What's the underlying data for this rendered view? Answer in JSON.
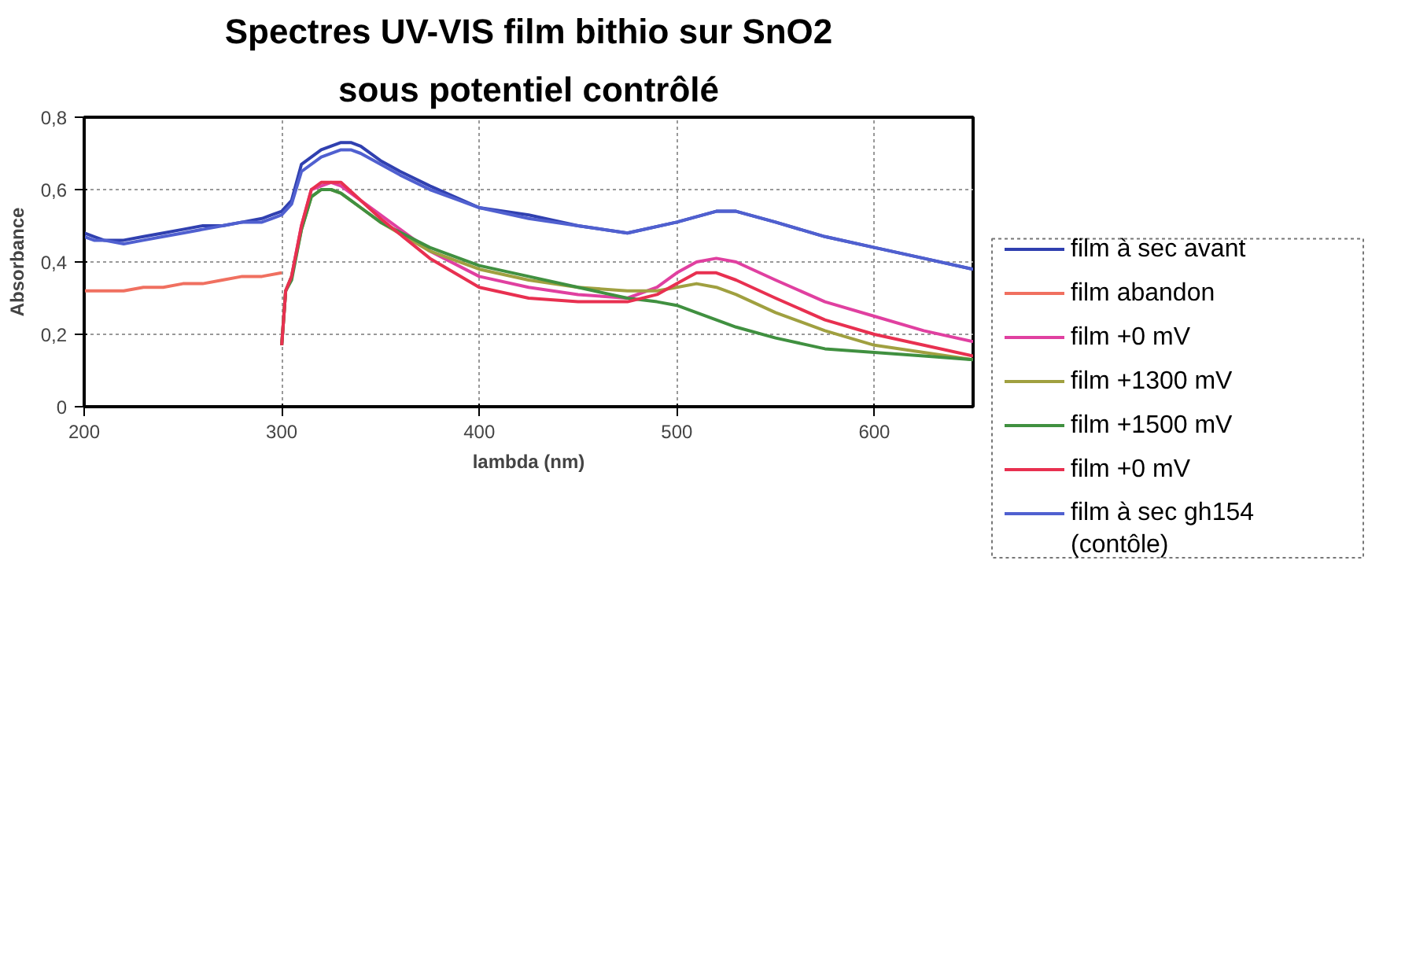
{
  "chart_data": {
    "type": "line",
    "title": "Spectres UV-VIS film bithio sur SnO2",
    "subtitle": "sous potentiel contrôlé",
    "xlabel": "lambda (nm)",
    "ylabel": "Absorbance",
    "xlim": [
      200,
      650
    ],
    "xticks": [
      200,
      300,
      400,
      500,
      600
    ],
    "ylim": [
      0,
      0.8
    ],
    "yticks": [
      {
        "value": 0,
        "label": "0"
      },
      {
        "value": 0.2,
        "label": "0,2"
      },
      {
        "value": 0.4,
        "label": "0,4"
      },
      {
        "value": 0.6,
        "label": "0,6"
      },
      {
        "value": 0.8,
        "label": "0,8"
      }
    ],
    "grid": true,
    "legend": "right",
    "marker": "none",
    "line_style": "solid",
    "series": [
      {
        "name": "film à sec avant",
        "color": "#3040b0",
        "x": [
          200,
          205,
          210,
          220,
          230,
          240,
          250,
          260,
          270,
          280,
          290,
          295,
          300,
          305,
          310,
          320,
          330,
          335,
          340,
          350,
          360,
          375,
          400,
          425,
          450,
          475,
          500,
          520,
          530,
          550,
          575,
          600,
          625,
          650
        ],
        "values": [
          0.48,
          0.47,
          0.46,
          0.46,
          0.47,
          0.48,
          0.49,
          0.5,
          0.5,
          0.51,
          0.52,
          0.53,
          0.54,
          0.57,
          0.67,
          0.71,
          0.73,
          0.73,
          0.72,
          0.68,
          0.65,
          0.61,
          0.55,
          0.53,
          0.5,
          0.48,
          0.51,
          0.54,
          0.54,
          0.51,
          0.47,
          0.44,
          0.41,
          0.38
        ]
      },
      {
        "name": "film abandon",
        "color": "#f07060",
        "x": [
          200,
          210,
          220,
          230,
          240,
          250,
          260,
          270,
          280,
          290,
          300
        ],
        "values": [
          0.32,
          0.32,
          0.32,
          0.33,
          0.33,
          0.34,
          0.34,
          0.35,
          0.36,
          0.36,
          0.37
        ]
      },
      {
        "name": "film +0 mV",
        "color": "#e040a0",
        "x": [
          300,
          302,
          305,
          310,
          315,
          320,
          325,
          330,
          340,
          350,
          375,
          400,
          425,
          450,
          475,
          490,
          500,
          510,
          520,
          530,
          550,
          575,
          600,
          625,
          650
        ],
        "values": [
          0.17,
          0.32,
          0.36,
          0.5,
          0.6,
          0.61,
          0.62,
          0.61,
          0.57,
          0.53,
          0.43,
          0.36,
          0.33,
          0.31,
          0.3,
          0.33,
          0.37,
          0.4,
          0.41,
          0.4,
          0.35,
          0.29,
          0.25,
          0.21,
          0.18
        ]
      },
      {
        "name": "film +1300 mV",
        "color": "#a0a040",
        "x": [
          300,
          302,
          305,
          310,
          315,
          320,
          325,
          330,
          340,
          350,
          375,
          400,
          425,
          450,
          475,
          490,
          500,
          510,
          520,
          530,
          550,
          575,
          600,
          625,
          650
        ],
        "values": [
          0.17,
          0.32,
          0.36,
          0.49,
          0.58,
          0.6,
          0.6,
          0.59,
          0.55,
          0.51,
          0.43,
          0.38,
          0.35,
          0.33,
          0.32,
          0.32,
          0.33,
          0.34,
          0.33,
          0.31,
          0.26,
          0.21,
          0.17,
          0.15,
          0.13
        ]
      },
      {
        "name": "film +1500 mV",
        "color": "#409040",
        "x": [
          300,
          302,
          305,
          310,
          315,
          320,
          325,
          330,
          340,
          350,
          375,
          400,
          425,
          450,
          475,
          490,
          500,
          510,
          520,
          530,
          550,
          575,
          600,
          625,
          650
        ],
        "values": [
          0.17,
          0.32,
          0.35,
          0.49,
          0.58,
          0.6,
          0.6,
          0.59,
          0.55,
          0.51,
          0.44,
          0.39,
          0.36,
          0.33,
          0.3,
          0.29,
          0.28,
          0.26,
          0.24,
          0.22,
          0.19,
          0.16,
          0.15,
          0.14,
          0.13
        ]
      },
      {
        "name": "film +0 mV",
        "color": "#e83050",
        "x": [
          300,
          302,
          305,
          310,
          315,
          320,
          325,
          330,
          340,
          350,
          375,
          400,
          425,
          450,
          475,
          490,
          500,
          510,
          520,
          530,
          550,
          575,
          600,
          625,
          650
        ],
        "values": [
          0.17,
          0.32,
          0.36,
          0.5,
          0.6,
          0.62,
          0.62,
          0.62,
          0.57,
          0.52,
          0.41,
          0.33,
          0.3,
          0.29,
          0.29,
          0.31,
          0.34,
          0.37,
          0.37,
          0.35,
          0.3,
          0.24,
          0.2,
          0.17,
          0.14
        ]
      },
      {
        "name": "film à sec gh154 (contôle)",
        "color": "#5060d0",
        "x": [
          200,
          205,
          210,
          220,
          230,
          240,
          250,
          260,
          270,
          280,
          290,
          295,
          300,
          305,
          310,
          320,
          330,
          335,
          340,
          350,
          360,
          375,
          400,
          425,
          450,
          475,
          500,
          520,
          530,
          550,
          575,
          600,
          625,
          650
        ],
        "values": [
          0.47,
          0.46,
          0.46,
          0.45,
          0.46,
          0.47,
          0.48,
          0.49,
          0.5,
          0.51,
          0.51,
          0.52,
          0.53,
          0.56,
          0.65,
          0.69,
          0.71,
          0.71,
          0.7,
          0.67,
          0.64,
          0.6,
          0.55,
          0.52,
          0.5,
          0.48,
          0.51,
          0.54,
          0.54,
          0.51,
          0.47,
          0.44,
          0.41,
          0.38
        ]
      }
    ]
  }
}
